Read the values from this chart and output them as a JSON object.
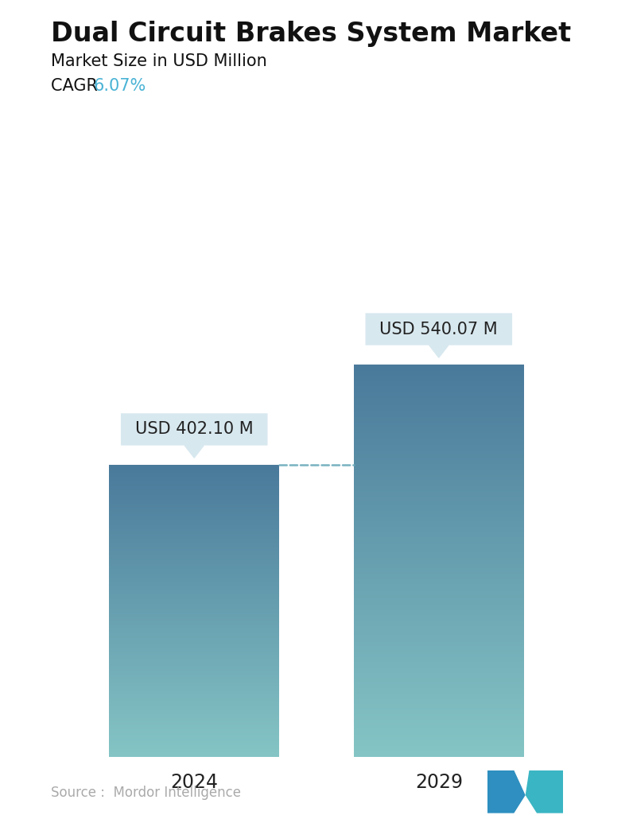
{
  "title": "Dual Circuit Brakes System Market",
  "subtitle": "Market Size in USD Million",
  "cagr_label": "CAGR",
  "cagr_value": "6.07%",
  "cagr_color": "#4ab3d5",
  "categories": [
    "2024",
    "2029"
  ],
  "values": [
    402.1,
    540.07
  ],
  "labels": [
    "USD 402.10 M",
    "USD 540.07 M"
  ],
  "bar_color_top": [
    "#4a7a9b",
    "#4a7a9b"
  ],
  "bar_color_bottom": [
    "#85c5c5",
    "#85c5c5"
  ],
  "dashed_line_color": "#6aaabb",
  "background_color": "#ffffff",
  "source_text": "Source :  Mordor Intelligence",
  "source_color": "#aaaaaa",
  "title_fontsize": 24,
  "subtitle_fontsize": 15,
  "cagr_fontsize": 15,
  "tick_fontsize": 17,
  "label_fontsize": 15,
  "tooltip_bg": "#d8e8ef",
  "ylim": [
    0,
    680
  ],
  "bar_positions": [
    0.27,
    0.73
  ],
  "bar_width": 0.32
}
